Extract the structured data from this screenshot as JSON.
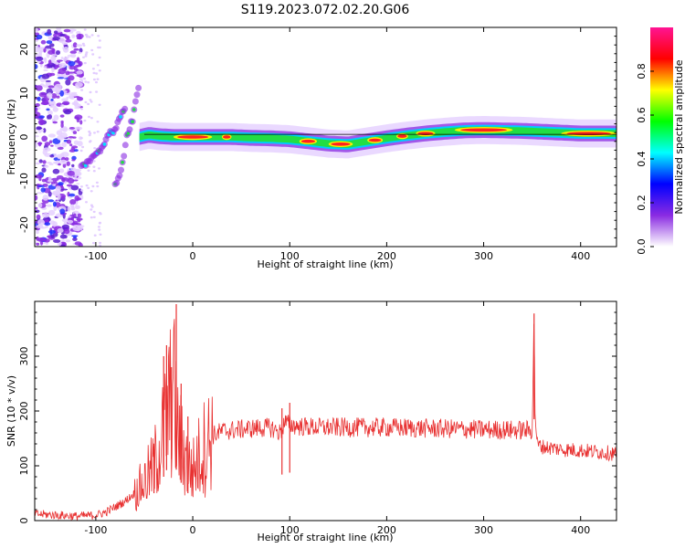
{
  "title": "S119.2023.072.02.20.G06",
  "chart_data": [
    {
      "type": "heatmap",
      "xlabel": "Height of straight line (km)",
      "ylabel": "Frequency (Hz)",
      "xlim": [
        -163,
        437
      ],
      "ylim": [
        -25,
        25
      ],
      "xticks": [
        -100,
        0,
        100,
        200,
        300,
        400
      ],
      "yticks": [
        -20,
        -10,
        0,
        10,
        20
      ],
      "colorbar": {
        "label": "Normalized spectral amplitude",
        "range": [
          0,
          1
        ],
        "ticks": [
          0.0,
          0.2,
          0.4,
          0.6,
          0.8
        ],
        "colormap": [
          "#ffffff",
          "#8a2be2",
          "#0000ff",
          "#00ffff",
          "#00ff00",
          "#ffff00",
          "#ff0000",
          "#ff1493"
        ]
      },
      "ridge": {
        "x": [
          -55,
          -45,
          -35,
          -20,
          0,
          20,
          40,
          60,
          80,
          100,
          120,
          140,
          160,
          180,
          200,
          220,
          240,
          260,
          280,
          300,
          320,
          340,
          360,
          380,
          400,
          437
        ],
        "y": [
          0,
          0.5,
          0.2,
          0,
          0,
          0,
          0,
          -0.2,
          -0.3,
          -0.5,
          -1,
          -1.5,
          -1.7,
          -1,
          -0.3,
          0.3,
          0.8,
          1.2,
          1.5,
          1.6,
          1.5,
          1.4,
          1.2,
          1.0,
          0.8,
          0.8
        ]
      },
      "early_tracks": [
        {
          "x": [
            -115,
            -105,
            -95,
            -88,
            -80,
            -75,
            -70
          ],
          "y": [
            -7,
            -5,
            -3,
            0,
            2,
            5,
            7
          ]
        },
        {
          "x": [
            -80,
            -75,
            -72,
            -68,
            -62,
            -58,
            -55
          ],
          "y": [
            -11,
            -8,
            -5,
            0,
            4,
            9,
            12
          ]
        }
      ],
      "noise_region": {
        "x": [
          -163,
          -115
        ],
        "y": [
          -25,
          25
        ]
      }
    },
    {
      "type": "line",
      "xlabel": "Height of straight line (km)",
      "ylabel": "SNR (10 * v/v)",
      "xlim": [
        -163,
        437
      ],
      "ylim": [
        0,
        400
      ],
      "xticks": [
        -100,
        0,
        100,
        200,
        300,
        400
      ],
      "yticks": [
        0,
        100,
        200,
        300
      ],
      "color": "#e83030",
      "series": [
        {
          "x": [
            -163,
            -140,
            -120,
            -100,
            -90,
            -80,
            -70,
            -60,
            -50,
            -40,
            -30,
            -25,
            -20,
            -15,
            -10,
            -5,
            0,
            5,
            10,
            20,
            30,
            40,
            60,
            80,
            90,
            95,
            100,
            110,
            130,
            160,
            200,
            250,
            300,
            340,
            350,
            352,
            353,
            355,
            360,
            380,
            400,
            420,
            437
          ],
          "y": [
            12,
            10,
            8,
            10,
            15,
            25,
            35,
            50,
            70,
            100,
            160,
            200,
            240,
            150,
            130,
            100,
            90,
            110,
            130,
            155,
            163,
            165,
            168,
            170,
            160,
            180,
            175,
            172,
            170,
            170,
            170,
            168,
            166,
            165,
            165,
            370,
            200,
            140,
            135,
            130,
            128,
            125,
            122
          ]
        }
      ],
      "spikes": [
        {
          "x": -40,
          "ymax": 130
        },
        {
          "x": -30,
          "ymax": 300
        },
        {
          "x": -27,
          "ymax": 320
        },
        {
          "x": -22,
          "ymax": 280
        },
        {
          "x": -17,
          "ymax": 395
        },
        {
          "x": -12,
          "ymax": 250
        },
        {
          "x": -5,
          "ymax": 190
        },
        {
          "x": 92,
          "ymax": 205
        },
        {
          "x": 100,
          "ymax": 215
        },
        {
          "x": 352,
          "ymax": 378
        }
      ]
    }
  ]
}
